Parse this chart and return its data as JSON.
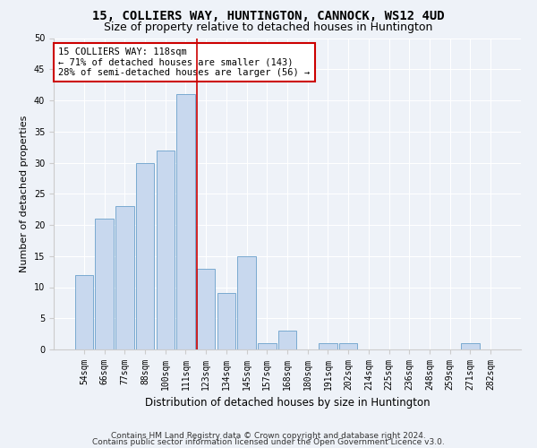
{
  "title": "15, COLLIERS WAY, HUNTINGTON, CANNOCK, WS12 4UD",
  "subtitle": "Size of property relative to detached houses in Huntington",
  "xlabel": "Distribution of detached houses by size in Huntington",
  "ylabel": "Number of detached properties",
  "categories": [
    "54sqm",
    "66sqm",
    "77sqm",
    "88sqm",
    "100sqm",
    "111sqm",
    "123sqm",
    "134sqm",
    "145sqm",
    "157sqm",
    "168sqm",
    "180sqm",
    "191sqm",
    "202sqm",
    "214sqm",
    "225sqm",
    "236sqm",
    "248sqm",
    "259sqm",
    "271sqm",
    "282sqm"
  ],
  "values": [
    12,
    21,
    23,
    30,
    32,
    41,
    13,
    9,
    15,
    1,
    3,
    0,
    1,
    1,
    0,
    0,
    0,
    0,
    0,
    1,
    0
  ],
  "bar_color": "#c8d8ee",
  "bar_edge_color": "#7aaad0",
  "property_line_x": 6.0,
  "property_line_color": "#cc0000",
  "annotation_text": "15 COLLIERS WAY: 118sqm\n← 71% of detached houses are smaller (143)\n28% of semi-detached houses are larger (56) →",
  "annotation_box_color": "#ffffff",
  "annotation_box_edge_color": "#cc0000",
  "ylim": [
    0,
    50
  ],
  "yticks": [
    0,
    5,
    10,
    15,
    20,
    25,
    30,
    35,
    40,
    45,
    50
  ],
  "background_color": "#eef2f8",
  "axes_background": "#eef2f8",
  "grid_color": "#ffffff",
  "footer_line1": "Contains HM Land Registry data © Crown copyright and database right 2024.",
  "footer_line2": "Contains public sector information licensed under the Open Government Licence v3.0.",
  "title_fontsize": 10,
  "subtitle_fontsize": 9,
  "xlabel_fontsize": 8.5,
  "ylabel_fontsize": 8,
  "tick_fontsize": 7,
  "annotation_fontsize": 7.5,
  "footer_fontsize": 6.5
}
